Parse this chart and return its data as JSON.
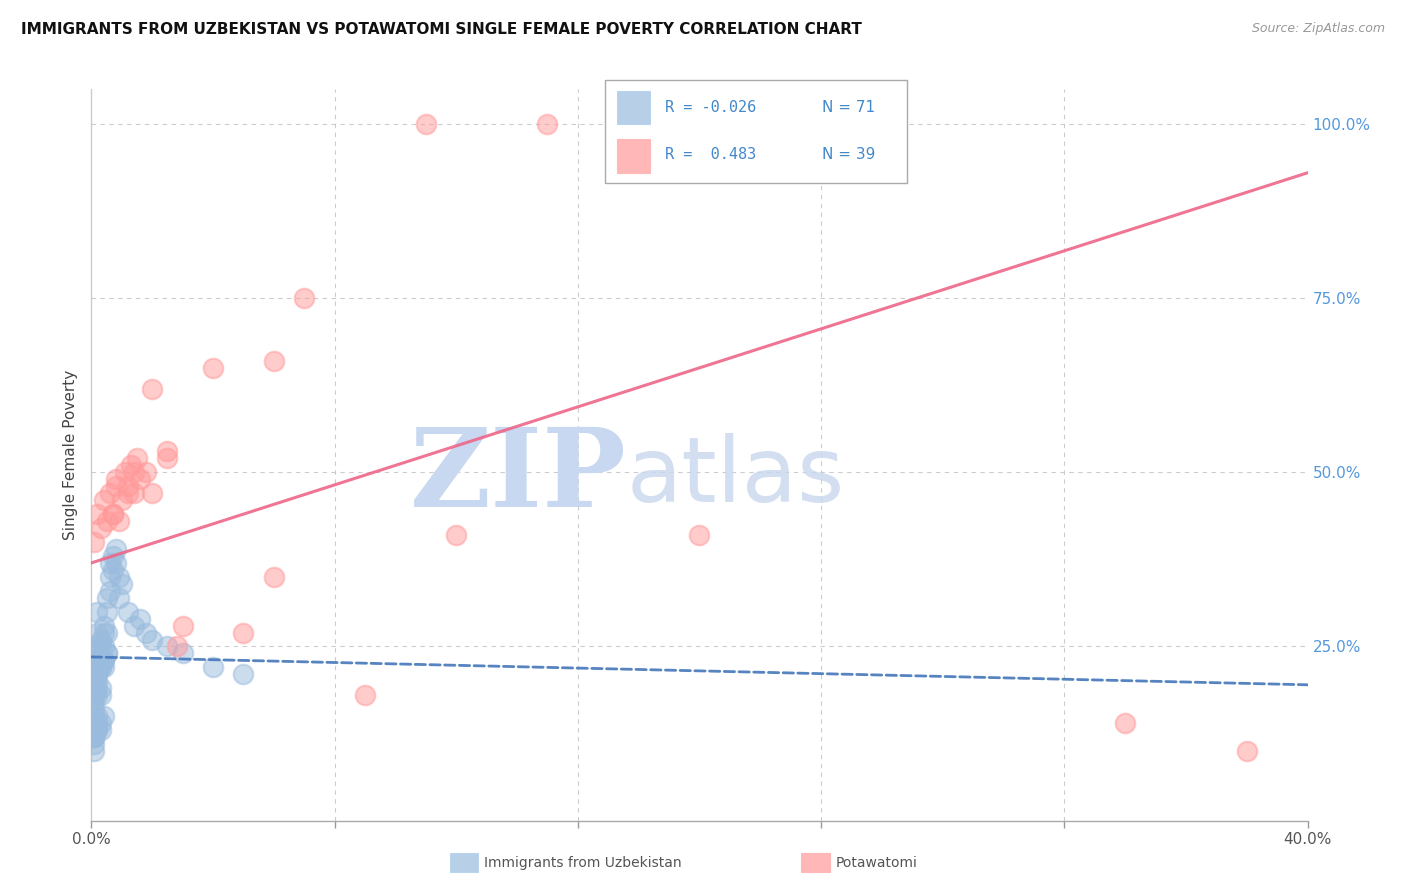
{
  "title": "IMMIGRANTS FROM UZBEKISTAN VS POTAWATOMI SINGLE FEMALE POVERTY CORRELATION CHART",
  "source": "Source: ZipAtlas.com",
  "ylabel": "Single Female Poverty",
  "xlim": [
    0.0,
    0.4
  ],
  "ylim": [
    0.0,
    1.05
  ],
  "x_ticks": [
    0.0,
    0.08,
    0.16,
    0.24,
    0.32,
    0.4
  ],
  "y_ticks": [
    0.0,
    0.25,
    0.5,
    0.75,
    1.0
  ],
  "y_tick_labels_right": [
    "",
    "25.0%",
    "50.0%",
    "75.0%",
    "100.0%"
  ],
  "blue_color": "#99BBDD",
  "pink_color": "#FF9999",
  "blue_line_color": "#4477BB",
  "pink_line_color": "#EE6688",
  "right_tick_color": "#5599DD",
  "blue_trend_x": [
    0.0,
    0.4
  ],
  "blue_trend_y": [
    0.235,
    0.195
  ],
  "pink_trend_x": [
    0.0,
    0.4
  ],
  "pink_trend_y": [
    0.37,
    0.93
  ],
  "blue_x": [
    0.001,
    0.001,
    0.001,
    0.001,
    0.001,
    0.001,
    0.001,
    0.001,
    0.001,
    0.001,
    0.002,
    0.002,
    0.002,
    0.002,
    0.002,
    0.002,
    0.002,
    0.002,
    0.002,
    0.003,
    0.003,
    0.003,
    0.003,
    0.003,
    0.003,
    0.004,
    0.004,
    0.004,
    0.004,
    0.004,
    0.005,
    0.005,
    0.005,
    0.005,
    0.006,
    0.006,
    0.006,
    0.007,
    0.007,
    0.008,
    0.008,
    0.009,
    0.009,
    0.01,
    0.012,
    0.014,
    0.016,
    0.018,
    0.02,
    0.025,
    0.03,
    0.04,
    0.05,
    0.001,
    0.001,
    0.002,
    0.002,
    0.003,
    0.001,
    0.002,
    0.003,
    0.004,
    0.001,
    0.002,
    0.001,
    0.001,
    0.001,
    0.002,
    0.003,
    0.004,
    0.005
  ],
  "blue_y": [
    0.23,
    0.22,
    0.21,
    0.2,
    0.19,
    0.18,
    0.17,
    0.16,
    0.15,
    0.25,
    0.24,
    0.23,
    0.22,
    0.21,
    0.2,
    0.19,
    0.18,
    0.27,
    0.3,
    0.26,
    0.25,
    0.23,
    0.22,
    0.19,
    0.18,
    0.28,
    0.27,
    0.25,
    0.23,
    0.22,
    0.32,
    0.3,
    0.27,
    0.24,
    0.37,
    0.35,
    0.33,
    0.38,
    0.36,
    0.39,
    0.37,
    0.35,
    0.32,
    0.34,
    0.3,
    0.28,
    0.29,
    0.27,
    0.26,
    0.25,
    0.24,
    0.22,
    0.21,
    0.14,
    0.13,
    0.15,
    0.14,
    0.13,
    0.12,
    0.13,
    0.14,
    0.15,
    0.12,
    0.13,
    0.1,
    0.11,
    0.12,
    0.21,
    0.22,
    0.23,
    0.24
  ],
  "pink_x": [
    0.001,
    0.002,
    0.003,
    0.004,
    0.005,
    0.006,
    0.007,
    0.008,
    0.009,
    0.01,
    0.011,
    0.012,
    0.013,
    0.014,
    0.015,
    0.016,
    0.018,
    0.02,
    0.025,
    0.03,
    0.04,
    0.06,
    0.07,
    0.09,
    0.11,
    0.15,
    0.2,
    0.34,
    0.38,
    0.007,
    0.008,
    0.012,
    0.014,
    0.02,
    0.025,
    0.028,
    0.05,
    0.06,
    0.12
  ],
  "pink_y": [
    0.4,
    0.44,
    0.42,
    0.46,
    0.43,
    0.47,
    0.44,
    0.48,
    0.43,
    0.46,
    0.5,
    0.48,
    0.51,
    0.47,
    0.52,
    0.49,
    0.5,
    0.47,
    0.53,
    0.28,
    0.65,
    0.66,
    0.75,
    0.18,
    1.0,
    1.0,
    0.41,
    0.14,
    0.1,
    0.44,
    0.49,
    0.47,
    0.5,
    0.62,
    0.52,
    0.25,
    0.27,
    0.35,
    0.41
  ],
  "legend_blue_r": "R = -0.026",
  "legend_blue_n": "N = 71",
  "legend_pink_r": "R =  0.483",
  "legend_pink_n": "N = 39",
  "legend_text_color": "#4488CC",
  "bottom_label_blue": "Immigrants from Uzbekistan",
  "bottom_label_pink": "Potawatomi"
}
